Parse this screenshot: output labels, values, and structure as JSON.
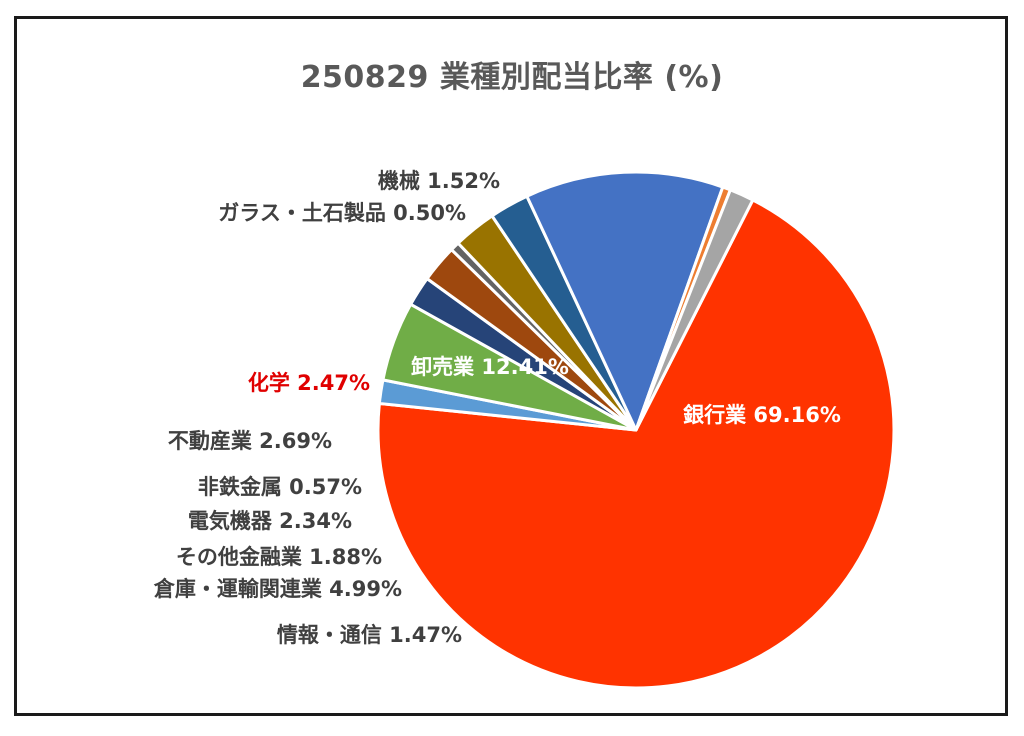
{
  "chart_data": {
    "type": "pie",
    "title": "250829 業種別配当比率 (%)",
    "slices": [
      {
        "label": "銀行業",
        "value": 69.16,
        "value_text": "69.16%",
        "color": "#ff3300"
      },
      {
        "label": "情報・通信",
        "value": 1.47,
        "value_text": "1.47%",
        "color": "#5b9bd5"
      },
      {
        "label": "倉庫・運輸関連業",
        "value": 4.99,
        "value_text": "4.99%",
        "color": "#70ad47"
      },
      {
        "label": "その他金融業",
        "value": 1.88,
        "value_text": "1.88%",
        "color": "#264478"
      },
      {
        "label": "電気機器",
        "value": 2.34,
        "value_text": "2.34%",
        "color": "#9e480e"
      },
      {
        "label": "非鉄金属",
        "value": 0.57,
        "value_text": "0.57%",
        "color": "#636363"
      },
      {
        "label": "不動産業",
        "value": 2.69,
        "value_text": "2.69%",
        "color": "#997300"
      },
      {
        "label": "化学",
        "value": 2.47,
        "value_text": "2.47%",
        "color": "#255e91",
        "label_color": "#e00000"
      },
      {
        "label": "卸売業",
        "value": 12.41,
        "value_text": "12.41%",
        "color": "#4472c4"
      },
      {
        "label": "ガラス・土石製品",
        "value": 0.5,
        "value_text": "0.50%",
        "color": "#ed7d31"
      },
      {
        "label": "機械",
        "value": 1.52,
        "value_text": "1.52%",
        "color": "#a5a5a5"
      }
    ]
  }
}
